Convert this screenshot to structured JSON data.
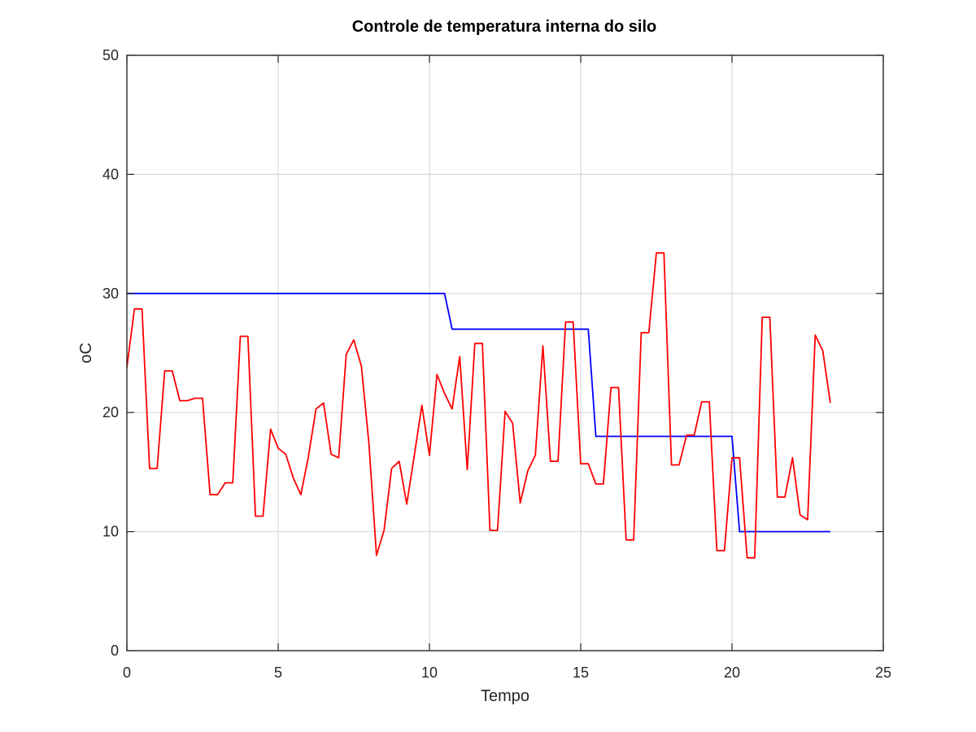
{
  "chart_data": {
    "type": "line",
    "title": "Controle de temperatura interna do silo",
    "xlabel": "Tempo",
    "ylabel": "oC",
    "xlim": [
      0,
      25
    ],
    "ylim": [
      0,
      50
    ],
    "x_ticks": [
      "0",
      "5",
      "10",
      "15",
      "20",
      "25"
    ],
    "y_ticks": [
      "0",
      "10",
      "20",
      "30",
      "40",
      "50"
    ],
    "grid": true,
    "series": [
      {
        "color": "#0000ff",
        "x": [
          0,
          10.5,
          10.75,
          15.25,
          15.5,
          20.0,
          20.25,
          23.25
        ],
        "y": [
          30,
          30,
          27,
          27,
          18,
          18,
          10,
          10
        ]
      },
      {
        "color": "#ff0000",
        "x": [
          0,
          0.25,
          0.5,
          0.75,
          1.0,
          1.25,
          1.5,
          1.75,
          2.0,
          2.25,
          2.5,
          2.75,
          3.0,
          3.25,
          3.5,
          3.75,
          4.0,
          4.25,
          4.5,
          4.75,
          5.0,
          5.25,
          5.5,
          5.75,
          6.0,
          6.25,
          6.5,
          6.75,
          7.0,
          7.25,
          7.5,
          7.75,
          8.0,
          8.25,
          8.5,
          8.75,
          9.0,
          9.25,
          9.5,
          9.75,
          10.0,
          10.25,
          10.5,
          10.75,
          11.0,
          11.25,
          11.5,
          11.75,
          12.0,
          12.25,
          12.5,
          12.75,
          13.0,
          13.25,
          13.5,
          13.75,
          14.0,
          14.25,
          14.5,
          14.75,
          15.0,
          15.25,
          15.5,
          15.75,
          16.0,
          16.25,
          16.5,
          16.75,
          17.0,
          17.25,
          17.5,
          17.75,
          18.0,
          18.25,
          18.5,
          18.75,
          19.0,
          19.25,
          19.5,
          19.75,
          20.0,
          20.25,
          20.5,
          20.75,
          21.0,
          21.25,
          21.5,
          21.75,
          22.0,
          22.25,
          22.5,
          22.75,
          23.0,
          23.25
        ],
        "y": [
          23.8,
          28.7,
          28.7,
          15.3,
          15.3,
          23.5,
          23.5,
          21.0,
          21.0,
          21.2,
          21.2,
          13.1,
          13.1,
          14.1,
          14.1,
          26.4,
          26.4,
          11.3,
          11.3,
          18.6,
          17.0,
          16.5,
          14.5,
          13.1,
          16.3,
          20.3,
          20.8,
          16.5,
          16.2,
          24.9,
          26.1,
          23.9,
          17.4,
          8.0,
          10.1,
          15.3,
          15.9,
          12.3,
          16.4,
          20.6,
          16.4,
          23.2,
          21.6,
          20.3,
          24.7,
          15.2,
          25.8,
          25.8,
          10.1,
          10.1,
          20.1,
          19.1,
          12.4,
          15.1,
          16.4,
          25.6,
          15.9,
          15.9,
          27.6,
          27.6,
          15.7,
          15.7,
          14.0,
          14.0,
          22.1,
          22.1,
          9.3,
          9.3,
          26.7,
          26.7,
          33.4,
          33.4,
          15.6,
          15.6,
          18.1,
          18.1,
          20.9,
          20.9,
          8.4,
          8.4,
          16.2,
          16.2,
          7.8,
          7.8,
          28.0,
          28.0,
          12.9,
          12.9,
          16.2,
          11.4,
          11.0,
          26.5,
          25.2,
          20.8
        ]
      }
    ]
  }
}
